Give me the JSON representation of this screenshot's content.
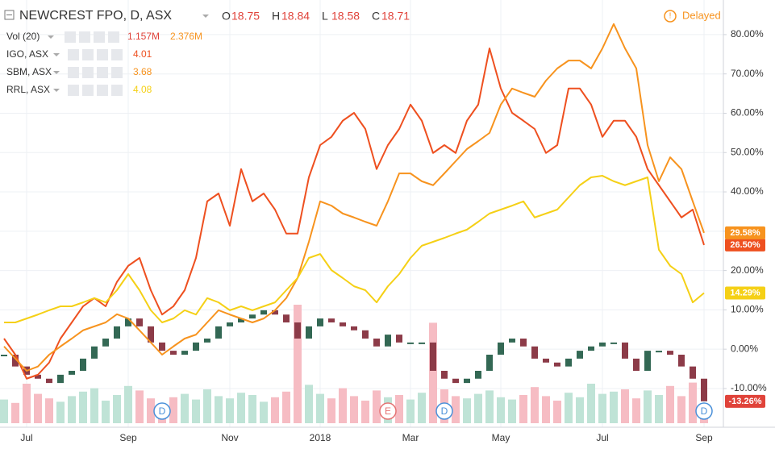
{
  "chart_data": {
    "type": "line",
    "title": "NEWCREST FPO, D, ASX",
    "ohlc": [
      {
        "name": "O",
        "value": 18.75
      },
      {
        "name": "H",
        "value": 18.84
      },
      {
        "name": "L",
        "value": 18.58
      },
      {
        "name": "C",
        "value": 18.71
      }
    ],
    "status": "Delayed",
    "categories": [
      null,
      null,
      "Jul",
      null,
      null,
      null,
      null,
      null,
      null,
      null,
      null,
      "Sep",
      null,
      null,
      null,
      null,
      null,
      null,
      null,
      null,
      "Nov",
      null,
      null,
      null,
      null,
      null,
      null,
      null,
      "2018",
      null,
      null,
      null,
      null,
      null,
      null,
      null,
      "Mar",
      null,
      null,
      null,
      null,
      null,
      null,
      null,
      "May",
      null,
      null,
      null,
      null,
      null,
      null,
      null,
      null,
      "Jul",
      null,
      null,
      null,
      null,
      null,
      null,
      null,
      null,
      "Sep"
    ],
    "ylim": [
      -17.8,
      88.8
    ],
    "yticks": [
      {
        "value": -10,
        "label": "-10.00%"
      },
      {
        "value": 0,
        "label": "0.00%"
      },
      {
        "value": 10,
        "label": "10.00%"
      },
      {
        "value": 20,
        "label": "20.00%"
      },
      {
        "value": 30,
        "label": "30.00%"
      },
      {
        "value": 40,
        "label": "40.00%"
      },
      {
        "value": 50,
        "label": "50.00%"
      },
      {
        "value": 60,
        "label": "60.00%"
      },
      {
        "value": 70,
        "label": "70.00%"
      },
      {
        "value": 80,
        "label": "80.00%"
      }
    ],
    "grid": true,
    "candles": {
      "up_color": "#336854",
      "down_color": "#8c3b48",
      "badge_color": "#e0433a",
      "last_label": "-13.26%",
      "values": [
        -1.4,
        -4.4,
        -6.5,
        -7.5,
        -8.6,
        -6.5,
        -5.5,
        -2.4,
        0.7,
        2.7,
        5.8,
        7.8,
        5.8,
        1.7,
        -0.4,
        -1.4,
        -0.4,
        1.7,
        2.7,
        5.8,
        6.8,
        7.8,
        8.8,
        9.9,
        8.8,
        6.8,
        2.7,
        5.8,
        7.8,
        6.8,
        5.8,
        4.8,
        2.7,
        0.7,
        3.7,
        1.7,
        1.7,
        1.7,
        -5.5,
        -7.5,
        -8.6,
        -7.5,
        -5.5,
        -1.4,
        1.7,
        2.7,
        0.7,
        -2.4,
        -3.4,
        -4.4,
        -2.4,
        -0.4,
        0.7,
        1.7,
        1.7,
        -2.4,
        -5.5,
        -0.4,
        -0.4,
        -1.4,
        -4.4,
        -7.5,
        -13.26
      ]
    },
    "volume": {
      "name": "Vol (20)",
      "last_label": "1.157M",
      "ma": {
        "value": 2.376,
        "label": "2.376M"
      },
      "label_color": "#e0433a",
      "ma_color": "#f7931e",
      "up_color": "#bfe3d6",
      "down_color": "#f6bcc3",
      "values": [
        2.1,
        1.8,
        3.5,
        2.6,
        2.2,
        1.9,
        2.4,
        2.8,
        3.1,
        2.0,
        2.5,
        3.3,
        2.9,
        2.2,
        1.7,
        2.3,
        2.6,
        2.1,
        3.0,
        2.4,
        2.2,
        2.7,
        2.5,
        1.9,
        2.3,
        2.8,
        10.5,
        3.4,
        2.6,
        2.2,
        3.1,
        2.4,
        2.0,
        2.9,
        2.3,
        2.5,
        2.1,
        2.7,
        8.9,
        3.0,
        2.4,
        2.2,
        2.6,
        2.9,
        2.3,
        2.1,
        2.5,
        3.2,
        2.4,
        2.0,
        2.7,
        2.3,
        3.5,
        2.6,
        2.8,
        3.0,
        2.2,
        2.9,
        2.5,
        3.3,
        2.4,
        3.6,
        1.157
      ]
    },
    "series": [
      {
        "name": "IGO, ASX",
        "price": 4.01,
        "color": "#ee5020",
        "last_label": "26.50%",
        "values": [
          2.7,
          -1.4,
          -7.5,
          -6.5,
          -3.4,
          2.7,
          6.8,
          10.9,
          13.0,
          10.9,
          17.1,
          21.2,
          23.2,
          15.0,
          8.8,
          10.9,
          15.0,
          23.2,
          37.6,
          39.6,
          31.4,
          45.8,
          37.6,
          39.6,
          35.5,
          29.4,
          29.4,
          43.7,
          51.9,
          54.0,
          58.1,
          60.1,
          56.0,
          45.8,
          51.9,
          56.0,
          62.2,
          58.1,
          49.9,
          51.9,
          49.9,
          58.1,
          62.2,
          76.5,
          66.3,
          60.1,
          58.1,
          56.0,
          49.9,
          51.9,
          66.3,
          66.3,
          62.2,
          54.0,
          58.1,
          58.1,
          54.0,
          45.8,
          41.7,
          37.6,
          33.5,
          35.5,
          26.5
        ]
      },
      {
        "name": "SBM, ASX",
        "price": 3.68,
        "color": "#f7931e",
        "last_label": "29.58%",
        "values": [
          0.7,
          -2.4,
          -5.5,
          -4.4,
          -1.4,
          0.7,
          2.7,
          4.8,
          5.8,
          6.8,
          8.9,
          7.8,
          4.8,
          1.7,
          -1.4,
          0.7,
          2.7,
          3.7,
          6.8,
          9.9,
          8.8,
          7.8,
          6.8,
          7.8,
          9.9,
          13.0,
          18.1,
          27.3,
          37.6,
          36.5,
          34.5,
          33.5,
          32.4,
          31.4,
          37.6,
          44.7,
          44.7,
          42.7,
          41.7,
          44.7,
          47.8,
          50.9,
          52.9,
          55.0,
          62.2,
          66.3,
          65.2,
          64.2,
          68.3,
          71.4,
          73.4,
          73.4,
          71.4,
          76.5,
          82.7,
          76.5,
          71.4,
          51.9,
          42.7,
          48.8,
          45.8,
          37.6,
          29.58
        ]
      },
      {
        "name": "RRL, ASX",
        "price": 4.08,
        "color": "#f5d016",
        "last_label": "14.29%",
        "values": [
          6.8,
          6.8,
          7.8,
          8.8,
          9.9,
          10.9,
          10.9,
          11.9,
          13.0,
          11.9,
          15.0,
          19.1,
          15.0,
          9.9,
          6.8,
          7.8,
          9.9,
          8.8,
          13.0,
          11.9,
          9.9,
          10.9,
          9.9,
          10.9,
          11.9,
          15.0,
          18.1,
          23.2,
          24.2,
          20.1,
          18.1,
          16.0,
          15.0,
          11.9,
          16.0,
          19.1,
          23.2,
          26.3,
          27.3,
          28.3,
          29.4,
          30.4,
          32.4,
          34.5,
          35.5,
          36.5,
          37.6,
          33.5,
          34.5,
          35.5,
          38.6,
          41.7,
          43.7,
          44.1,
          42.7,
          41.7,
          42.7,
          43.7,
          25.3,
          21.2,
          19.1,
          11.9,
          14.29
        ]
      }
    ],
    "events": [
      {
        "label": "D",
        "at": 14,
        "color": "#4a90d9"
      },
      {
        "label": "E",
        "at": 34,
        "color": "#e57373"
      },
      {
        "label": "D",
        "at": 39,
        "color": "#4a90d9"
      },
      {
        "label": "D",
        "at": 62,
        "color": "#4a90d9"
      }
    ]
  }
}
